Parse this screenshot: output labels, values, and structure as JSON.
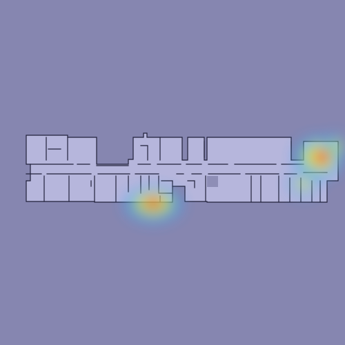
{
  "map": {
    "background_color": "#8686b0",
    "floor_fill": "#b6b6dc",
    "wall_color": "#20203a",
    "heat_colors": [
      "#ff2a1a",
      "#ffb22a",
      "#f4f23a",
      "#6ee06a",
      "#3aa0ff",
      "#4a5cff"
    ],
    "hotspots": [
      {
        "name": "hotspot-center-south",
        "intensity": 0.95
      },
      {
        "name": "hotspot-east-upper",
        "intensity": 1.0
      },
      {
        "name": "hotspot-east-right",
        "intensity": 0.75
      },
      {
        "name": "hotspot-east-lower",
        "intensity": 0.6
      }
    ]
  }
}
